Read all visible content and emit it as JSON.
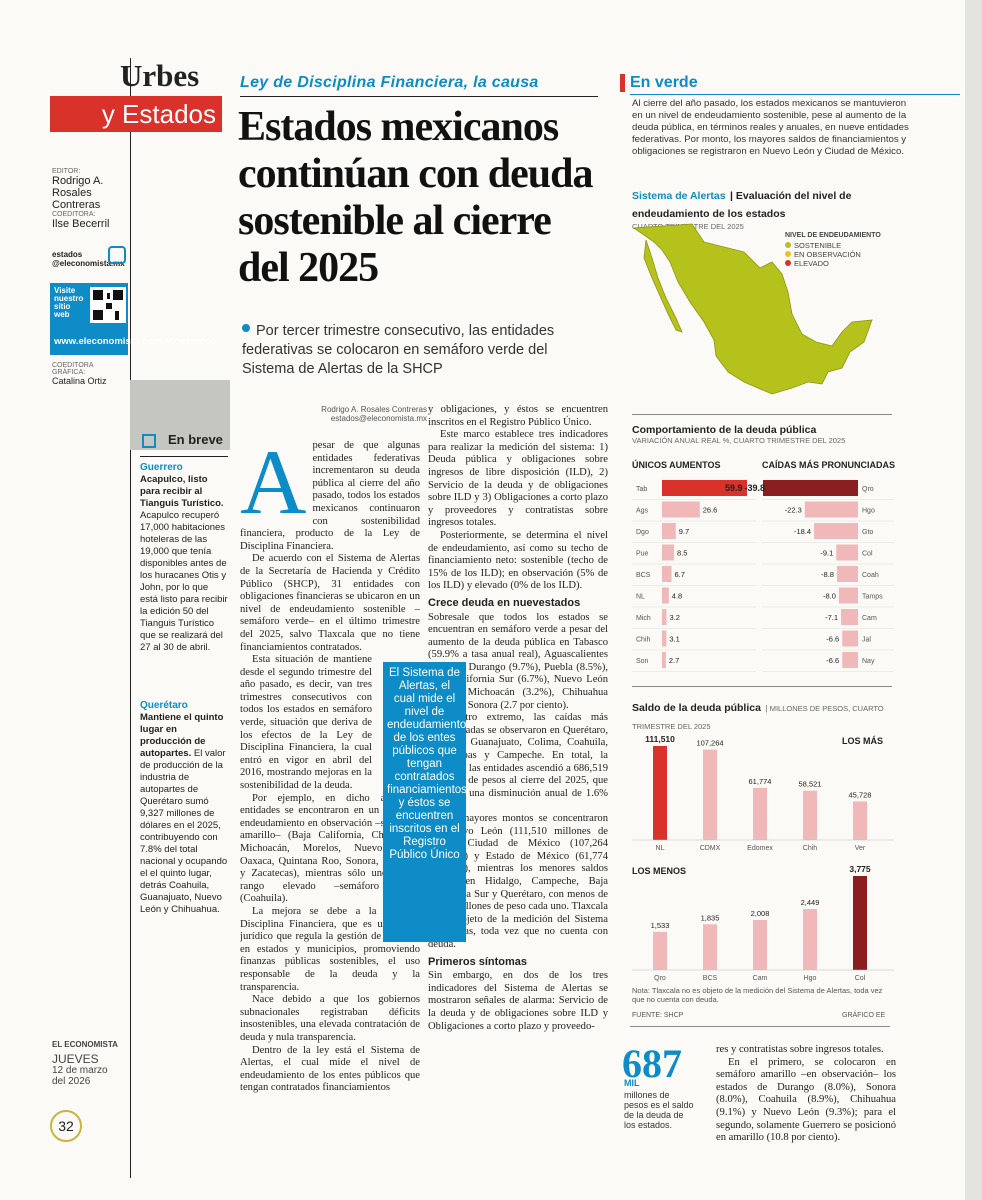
{
  "section": {
    "word1": "Urbes",
    "word2": "y Estados"
  },
  "editor": {
    "editor_label": "EDITOR:",
    "editor_name": "Rodrigo A. Rosales Contreras",
    "co_label": "COEDITORA:",
    "co_name": "Ilse Becerril",
    "social": "estados @eleconomista.mx",
    "visit_label": "Visite nuestro sitio web",
    "visit_url": "www.eleconomista.com.mx/estados",
    "graphic_label": "COEDITORA GRÁFICA:",
    "graphic_name": "Catalina Ortiz"
  },
  "brief": {
    "header": "En breve",
    "item1_cat": "Guerrero",
    "item1_head": "Acapulco, listo para recibir al Tianguis Turístico.",
    "item1_body": "Acapulco recuperó 17,000 habitaciones hoteleras de las 19,000 que tenía disponibles antes de los huracanes Otis y John, por lo que está listo para recibir la edición 50 del Tianguis Turístico que se realizará del 27 al 30 de abril.",
    "item2_cat": "Querétaro",
    "item2_head": "Mantiene el quinto lugar en producción de autopartes.",
    "item2_body": "El valor de producción de la industria de autopartes de Querétaro sumó 9,327 millones de dólares en el 2025, contribuyendo con 7.8% del total nacional y ocupando el el quinto lugar, detrás Coahuila, Guanajuato, Nuevo León y Chihuahua."
  },
  "article": {
    "kicker": "Ley de Disciplina Financiera, la causa",
    "title": "Estados mexicanos continúan con deuda sostenible al cierre del 2025",
    "lead": "Por tercer trimestre consecutivo, las entidades federativas se colocaron en semáforo verde del Sistema de Alertas de la SHCP",
    "author": "Rodrigo A. Rosales Contreras",
    "email": "estados@eleconomista.mx",
    "dropcap": "A",
    "p1": "pesar de que algunas entidades federativas incrementaron su deuda pública al cierre del año pasado, todos los estados mexicanos continuaron con sostenibilidad financiera, producto de la Ley de Disciplina Financiera.",
    "p2": "De acuerdo con el Sistema de Alertas de la Secretaría de Hacienda y Crédito Público (SHCP), 31 entidades con obligaciones financieras se ubicaron en un nivel de endeudamiento sostenible –semáforo verde– en el último trimestre del 2025, salvo Tlaxcala que no tiene financiamientos contratados.",
    "p3": "Esta situación de mantiene desde el segundo trimestre del año pasado, es decir, van tres trimestres consecutivos con todos los estados en semáforo verde, situación que deriva de los efectos de la Ley de Disciplina Financiera, la cual entró en vigor en abril del 2016, mostrando mejoras en la sostenibilidad de la deuda.",
    "p4": "Por ejemplo, en dicho año, 10 entidades se encontraron en un nivel de endeudamiento en observación –semáforo amarillo– (Baja California, Chihuahua, Michoacán, Morelos, Nuevo León, Oaxaca, Quintana Roo, Sonora, Veracruz y Zacatecas), mientras sólo uno en un rango elevado –semáforo rojo– (Coahuila).",
    "p5": "La mejora se debe a la Ley de Disciplina Financiera, que es un marco jurídico que regula la gestión de recursos en estados y municipios, promoviendo finanzas públicas sostenibles, el uso responsable de la deuda y la transparencia.",
    "p6": "Nace debido a que los gobiernos subnacionales registraban déficits insostenibles, una elevada contratación de deuda y nula transparencia.",
    "p7": "Dentro de la ley está el Sistema de Alertas, el cual mide el nivel de endeudamiento de los entes públicos que tengan contratados financiamientos",
    "p8": "y obligaciones, y éstos se encuentren inscritos en el Registro Público Único.",
    "p9": "Este marco establece tres indicadores para realizar la medición del sistema: 1) Deuda pública y obligaciones sobre ingresos de libre disposición (ILD), 2) Servicio de la deuda y de obligaciones sobre ILD y 3) Obligaciones a corto plazo y proveedores y contratistas sobre ingresos totales.",
    "p10": "Posteriormente, se determina el nivel de endeudamiento, así como su techo de financiamiento neto: sostenible (techo de 15% de los ILD); en observación (5% de los ILD) y elevado (0% de los ILD).",
    "sub1": "Crece deuda en nuevestados",
    "p11": "Sobresale que todos los estados se encuentran en semáforo verde a pesar del aumento de la deuda pública en Tabasco (59.9% a tasa anual real), Aguascalientes (26.6%), Durango (9.7%), Puebla (8.5%), Baja California Sur (6.7%), Nuevo León (4.8%), Michoacán (3.2%), Chihuahua (3.1%) y Sonora (2.7 por ciento).",
    "p12": "Al otro extremo, las caídas más pronunciadas se observaron en Querétaro, Hidalgo, Guanajuato, Colima, Coahuila, Tamaulipas y Campeche. En total, la deuda de las entidades ascendió a 686,519 millones de pesos al cierre del 2025, que significó una disminución anual de 1.6% real.",
    "p13": "Los mayores montos se concentraron en Nuevo León (111,510 millones de pesos), Ciudad de México (107,264 millones) y Estado de México (61,774 millones), mientras los menores saldos fueron en Hidalgo, Campeche, Baja California Sur y Querétaro, con menos de 2,500 millones de peso cada uno. Tlaxcala no es objeto de la medición del Sistema de Alertas, toda vez que no cuenta con deuda.",
    "sub2": "Primeros síntomas",
    "p14": "Sin embargo, en dos de los tres indicadores del Sistema de Alertas se mostraron señales de alarma: Servicio de la deuda y de obligaciones sobre ILD y Obligaciones a corto plazo y proveedo-",
    "p15": "res y contratistas sobre ingresos totales.",
    "p16": "En el primero, se colocaron en semáforo amarillo –en observación– los estados de Durango (8.0%), Sonora (8.0%), Coahuila (8.9%), Chihuahua (9.1%) y Nuevo León (9.3%); para el segundo, solamente Guerrero se posicionó en amarillo (10.8 por ciento).",
    "callout": "El Sistema de Alertas, el cual mide el nivel de endeudamiento de los entes públicos que tengan contratados financiamientos, y éstos se encuentren inscritos en el Registro Público Único"
  },
  "sidebar": {
    "header": "En verde",
    "intro": "Al cierre del año pasado, los estados mexicanos se mantuvieron en un nivel de endeudamiento sostenible, pese al aumento de la deuda pública, en términos reales y anuales, en nueve entidades federativas. Por monto, los mayores saldos de financiamientos y obligaciones se registraron en Nuevo León y Ciudad de México.",
    "map_title_a": "Sistema de Alertas",
    "map_title_b": "Evaluación del nivel de endeudamiento de los estados",
    "map_sub": "CUARTO TRIMESTRE DEL 2025",
    "legend_title": "NIVEL DE ENDEUDAMIENTO",
    "legend": [
      {
        "label": "SOSTENIBLE",
        "color": "#b5c21c"
      },
      {
        "label": "EN OBSERVACIÓN",
        "color": "#f0c419"
      },
      {
        "label": "ELEVADO",
        "color": "#d8322a"
      }
    ],
    "note": "Nota: Tlaxcala no es objeto de la medición del Sistema de Alertas, toda vez que no cuenta con deuda.",
    "source": "FUENTE: SHCP",
    "credit": "GRÁFICO EE",
    "big_number": "687",
    "big_unit": "MIL",
    "big_text": "millones de pesos es el saldo de la deuda de los estados."
  },
  "page": {
    "logo": "EL ECONOMISTA",
    "day": "JUEVES",
    "date": "12 de marzo del 2026",
    "number": "32"
  },
  "chart_data": [
    {
      "type": "bar",
      "title": "Comportamiento de la deuda pública",
      "subtitle": "VARIACIÓN ANUAL REAL %, CUARTO TRIMESTRE DEL 2025",
      "panels": [
        {
          "name": "ÚNICOS AUMENTOS",
          "categories": [
            "Tab",
            "Ags",
            "Dgo",
            "Pue",
            "BCS",
            "NL",
            "Mich",
            "Chih",
            "Son"
          ],
          "values": [
            59.9,
            26.6,
            9.7,
            8.5,
            6.7,
            4.8,
            3.2,
            3.1,
            2.7
          ],
          "labels": [
            "59.9",
            "26.6",
            "9.7",
            "8.5",
            "6.7",
            "4.8",
            "3.2",
            "3.1",
            "2.7"
          ]
        },
        {
          "name": "CAÍDAS MÁS PRONUNCIADAS",
          "categories": [
            "Qro",
            "Hgo",
            "Gto",
            "Col",
            "Coah",
            "Tamps",
            "Cam",
            "Jal",
            "Nay"
          ],
          "values": [
            -39.8,
            -22.3,
            -18.4,
            -9.1,
            -8.8,
            -8.0,
            -7.1,
            -6.6,
            -6.6
          ],
          "labels": [
            "-39.8",
            "-22.3",
            "-18.4",
            "-9.1",
            "-8.8",
            "-8.0",
            "-7.1",
            "-6.6",
            "-6.6"
          ]
        }
      ]
    },
    {
      "type": "bar",
      "title": "Saldo de la deuda pública",
      "subtitle": "MILLONES DE PESOS, CUARTO TRIMESTRE DEL 2025",
      "panels": [
        {
          "name": "LOS MÁS",
          "categories": [
            "NL",
            "CDMX",
            "Edomex",
            "Chih",
            "Ver"
          ],
          "values": [
            111510,
            107264,
            61774,
            58521,
            45728
          ],
          "labels": [
            "111,510",
            "107,264",
            "61,774",
            "58,521",
            "45,728"
          ]
        },
        {
          "name": "LOS MENOS",
          "categories": [
            "Qro",
            "BCS",
            "Cam",
            "Hgo",
            "Col"
          ],
          "values": [
            1533,
            1835,
            2008,
            2449,
            3775
          ],
          "labels": [
            "1,533",
            "1,835",
            "2,008",
            "2,449",
            "3,775"
          ]
        }
      ]
    }
  ]
}
